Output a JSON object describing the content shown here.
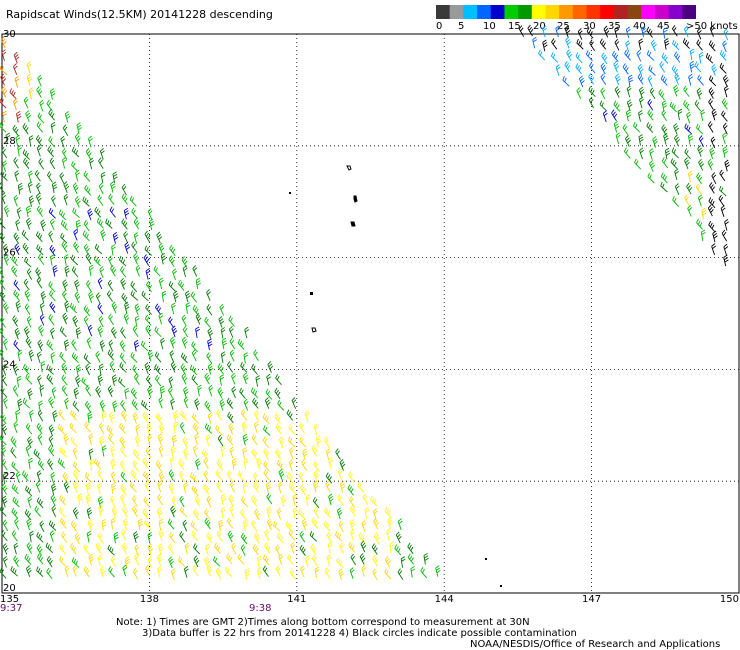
{
  "title": "Rapidscat Winds(12.5KM) 20141228 descending",
  "legend": {
    "labels": [
      "0",
      "5",
      "10",
      "15",
      "20",
      "25",
      "30",
      "35",
      "40",
      "45",
      ">50 knots"
    ],
    "colors": [
      "#3a3a3a",
      "#9a9a9a",
      "#00bfff",
      "#0066ff",
      "#0000cd",
      "#00cc00",
      "#009900",
      "#ffff00",
      "#ffd700",
      "#ff9900",
      "#ff6600",
      "#ff3300",
      "#ff0000",
      "#b22222",
      "#8b4513",
      "#ff00ff",
      "#cc00cc",
      "#8800cc",
      "#4b0082"
    ]
  },
  "map": {
    "lat_labels": [
      "30",
      "28",
      "26",
      "24",
      "22",
      "20"
    ],
    "lon_labels": [
      "135",
      "138",
      "141",
      "144",
      "147",
      "150"
    ],
    "time_labels": [
      "9:37",
      "9:38"
    ]
  },
  "notes": {
    "line1": "Note: 1) Times are GMT 2)Times along bottom correspond to measurement at 30N",
    "line2": "3)Data buffer is 22 hrs from 20141228 4) Black circles indicate possible contamination",
    "line3": "NOAA/NESDIS/Office of Research and Applications"
  },
  "swaths": [
    {
      "name": "west-swath",
      "corners": [
        [
          135,
          30
        ],
        [
          135,
          20
        ],
        [
          144,
          20
        ],
        [
          144,
          20.2
        ]
      ]
    },
    {
      "name": "east-swath",
      "corners": [
        [
          145.5,
          30
        ],
        [
          150,
          30
        ],
        [
          150,
          25.5
        ]
      ]
    }
  ]
}
